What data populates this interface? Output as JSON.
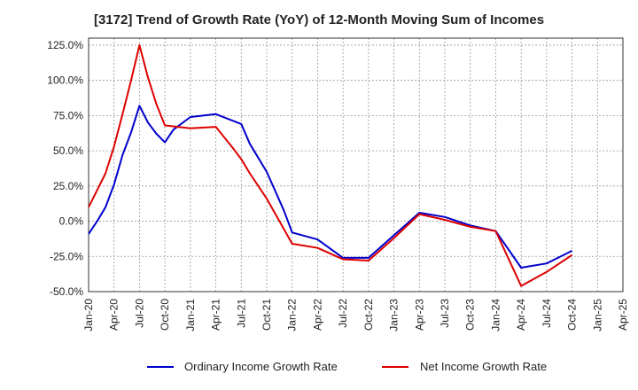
{
  "chart_data": {
    "type": "line",
    "title": "[3172]  Trend of Growth Rate (YoY) of 12-Month Moving Sum of Incomes",
    "xlabel": "",
    "ylabel": "",
    "x_tick_labels": [
      "Jan-20",
      "Apr-20",
      "Jul-20",
      "Oct-20",
      "Jan-21",
      "Apr-21",
      "Jul-21",
      "Oct-21",
      "Jan-22",
      "Apr-22",
      "Jul-22",
      "Oct-22",
      "Jan-23",
      "Apr-23",
      "Jul-23",
      "Oct-23",
      "Jan-24",
      "Apr-24",
      "Jul-24",
      "Oct-24",
      "Jan-25",
      "Apr-25"
    ],
    "y_tick_labels": [
      "125.0%",
      "100.0%",
      "75.0%",
      "50.0%",
      "25.0%",
      "0.0%",
      "-25.0%",
      "-50.0%"
    ],
    "y_tick_values": [
      125,
      100,
      75,
      50,
      25,
      0,
      -25,
      -50
    ],
    "ylim": [
      -50,
      130
    ],
    "grid": true,
    "legend_position": "bottom",
    "series": [
      {
        "name": "Ordinary Income Growth Rate",
        "color": "#0000cc",
        "points": [
          [
            0,
            -9
          ],
          [
            1,
            0
          ],
          [
            2,
            10
          ],
          [
            3,
            26
          ],
          [
            4,
            47
          ],
          [
            5,
            63
          ],
          [
            6,
            82
          ],
          [
            7,
            70
          ],
          [
            8,
            62
          ],
          [
            9,
            56
          ],
          [
            10,
            65
          ],
          [
            12,
            74
          ],
          [
            15,
            76
          ],
          [
            18,
            69
          ],
          [
            19,
            55
          ],
          [
            21,
            35
          ],
          [
            23,
            8
          ],
          [
            24,
            -8
          ],
          [
            27,
            -13
          ],
          [
            30,
            -26
          ],
          [
            33,
            -26
          ],
          [
            36,
            -10
          ],
          [
            39,
            6
          ],
          [
            42,
            3
          ],
          [
            45,
            -3
          ],
          [
            48,
            -7
          ],
          [
            51,
            -33
          ],
          [
            54,
            -30
          ],
          [
            57,
            -21
          ]
        ]
      },
      {
        "name": "Net Income Growth Rate",
        "color": "#dd0000",
        "points": [
          [
            0,
            10
          ],
          [
            1,
            22
          ],
          [
            2,
            34
          ],
          [
            3,
            53
          ],
          [
            4,
            76
          ],
          [
            5,
            100
          ],
          [
            6,
            125
          ],
          [
            7,
            102
          ],
          [
            8,
            83
          ],
          [
            9,
            68
          ],
          [
            12,
            66
          ],
          [
            15,
            67
          ],
          [
            17,
            52
          ],
          [
            18,
            44
          ],
          [
            19,
            34
          ],
          [
            21,
            16
          ],
          [
            24,
            -16
          ],
          [
            27,
            -19
          ],
          [
            30,
            -27
          ],
          [
            33,
            -28
          ],
          [
            36,
            -12
          ],
          [
            39,
            5
          ],
          [
            42,
            1
          ],
          [
            45,
            -4
          ],
          [
            48,
            -7
          ],
          [
            51,
            -46
          ],
          [
            54,
            -36
          ],
          [
            57,
            -24
          ]
        ]
      }
    ]
  }
}
